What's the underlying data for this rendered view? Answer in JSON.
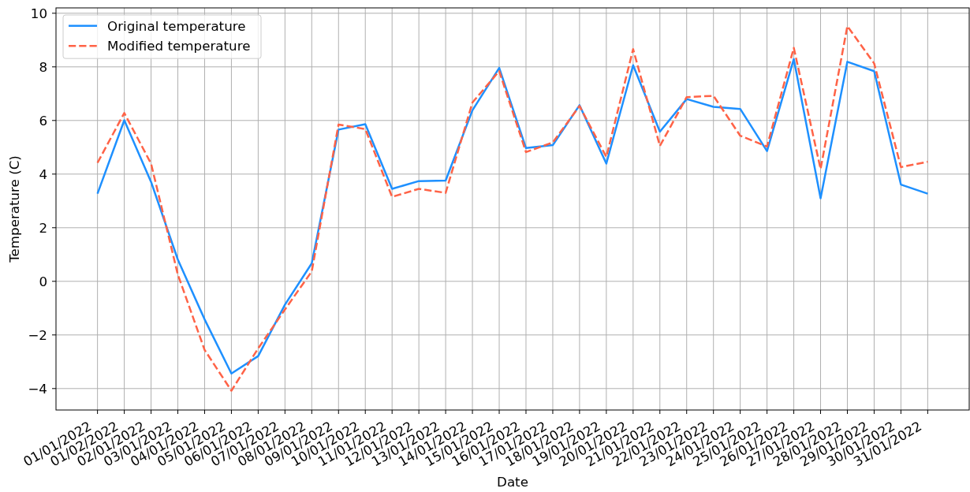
{
  "chart_data": {
    "type": "line",
    "xlabel": "Date",
    "ylabel": "Temperature (C)",
    "categories": [
      "01/01/2022",
      "01/02/2022",
      "02/01/2022",
      "03/01/2022",
      "04/01/2022",
      "05/01/2022",
      "06/01/2022",
      "07/01/2022",
      "08/01/2022",
      "09/01/2022",
      "10/01/2022",
      "11/01/2022",
      "12/01/2022",
      "13/01/2022",
      "14/01/2022",
      "15/01/2022",
      "16/01/2022",
      "17/01/2022",
      "18/01/2022",
      "19/01/2022",
      "20/01/2022",
      "21/01/2022",
      "22/01/2022",
      "23/01/2022",
      "24/01/2022",
      "25/01/2022",
      "26/01/2022",
      "27/01/2022",
      "28/01/2022",
      "29/01/2022",
      "30/01/2022",
      "31/01/2022"
    ],
    "series": [
      {
        "name": "Original temperature",
        "color": "#1e90ff",
        "line_style": "solid",
        "values": [
          3.27,
          6.01,
          3.71,
          0.81,
          -1.42,
          -3.44,
          -2.79,
          -0.87,
          0.67,
          5.66,
          5.86,
          3.45,
          3.74,
          3.76,
          6.38,
          7.96,
          4.97,
          5.08,
          6.57,
          4.39,
          8.06,
          5.58,
          6.8,
          6.51,
          6.43,
          4.86,
          8.29,
          3.1,
          8.19,
          7.84,
          3.61,
          3.27
        ]
      },
      {
        "name": "Modified temperature",
        "color": "#ff6347",
        "line_style": "dashed",
        "values": [
          4.42,
          6.28,
          4.39,
          0.25,
          -2.56,
          -4.08,
          -2.5,
          -1.05,
          0.37,
          5.85,
          5.68,
          3.15,
          3.45,
          3.3,
          6.67,
          7.84,
          4.82,
          5.18,
          6.54,
          4.64,
          8.66,
          5.05,
          6.87,
          6.92,
          5.43,
          5.03,
          8.71,
          4.19,
          9.52,
          8.13,
          4.26,
          4.46
        ]
      }
    ],
    "ylim": [
      -4.8,
      10.2
    ],
    "yticks": [
      {
        "value": -4,
        "label": "−4"
      },
      {
        "value": -2,
        "label": "−2"
      },
      0,
      2,
      4,
      6,
      8,
      10
    ],
    "grid": true,
    "legend": "top left"
  }
}
